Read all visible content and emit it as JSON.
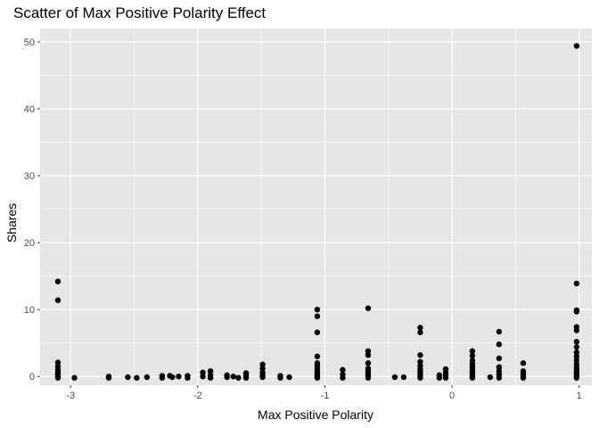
{
  "chart_data": {
    "type": "scatter",
    "title": "Scatter of Max Positive Polarity Effect",
    "xlabel": "Max Positive Polarity",
    "ylabel": "Shares",
    "xlim": [
      -3.24,
      1.1
    ],
    "ylim": [
      -1.3,
      52.0
    ],
    "x_ticks": [
      -3,
      -2,
      -1,
      0,
      1
    ],
    "y_ticks": [
      0,
      10,
      20,
      30,
      40,
      50
    ],
    "grid": true,
    "background": "#e5e5e5",
    "grid_color": "#ffffff",
    "point_color": "#000000",
    "points": [
      [
        -3.1,
        14.2
      ],
      [
        -3.1,
        11.4
      ],
      [
        -3.1,
        2.1
      ],
      [
        -3.1,
        1.5
      ],
      [
        -3.1,
        1.0
      ],
      [
        -3.1,
        0.6
      ],
      [
        -3.1,
        0.3
      ],
      [
        -3.1,
        0.0
      ],
      [
        -3.1,
        -0.2
      ],
      [
        -2.97,
        -0.2
      ],
      [
        -2.7,
        0.0
      ],
      [
        -2.7,
        -0.2
      ],
      [
        -2.55,
        -0.1
      ],
      [
        -2.48,
        -0.2
      ],
      [
        -2.4,
        -0.1
      ],
      [
        -2.28,
        0.1
      ],
      [
        -2.28,
        -0.2
      ],
      [
        -2.22,
        0.1
      ],
      [
        -2.2,
        -0.1
      ],
      [
        -2.15,
        0.0
      ],
      [
        -2.08,
        0.1
      ],
      [
        -2.08,
        -0.2
      ],
      [
        -1.96,
        0.6
      ],
      [
        -1.96,
        0.0
      ],
      [
        -1.9,
        0.8
      ],
      [
        -1.9,
        0.2
      ],
      [
        -1.9,
        -0.2
      ],
      [
        -1.77,
        0.2
      ],
      [
        -1.77,
        -0.1
      ],
      [
        -1.72,
        0.0
      ],
      [
        -1.68,
        -0.2
      ],
      [
        -1.62,
        0.5
      ],
      [
        -1.62,
        0.1
      ],
      [
        -1.62,
        -0.2
      ],
      [
        -1.49,
        1.8
      ],
      [
        -1.49,
        1.2
      ],
      [
        -1.49,
        0.6
      ],
      [
        -1.49,
        0.2
      ],
      [
        -1.49,
        -0.1
      ],
      [
        -1.35,
        0.1
      ],
      [
        -1.35,
        -0.2
      ],
      [
        -1.28,
        -0.1
      ],
      [
        -1.06,
        10.0
      ],
      [
        -1.06,
        9.0
      ],
      [
        -1.06,
        6.6
      ],
      [
        -1.06,
        3.0
      ],
      [
        -1.06,
        2.0
      ],
      [
        -1.06,
        1.6
      ],
      [
        -1.06,
        1.2
      ],
      [
        -1.06,
        0.8
      ],
      [
        -1.06,
        0.5
      ],
      [
        -1.06,
        0.2
      ],
      [
        -1.06,
        0.0
      ],
      [
        -1.06,
        -0.2
      ],
      [
        -0.86,
        1.0
      ],
      [
        -0.86,
        0.3
      ],
      [
        -0.86,
        -0.2
      ],
      [
        -0.66,
        10.2
      ],
      [
        -0.66,
        3.8
      ],
      [
        -0.66,
        3.2
      ],
      [
        -0.66,
        2.0
      ],
      [
        -0.66,
        1.2
      ],
      [
        -0.66,
        0.8
      ],
      [
        -0.66,
        0.4
      ],
      [
        -0.66,
        0.1
      ],
      [
        -0.66,
        -0.2
      ],
      [
        -0.45,
        -0.1
      ],
      [
        -0.38,
        -0.1
      ],
      [
        -0.25,
        7.3
      ],
      [
        -0.25,
        6.6
      ],
      [
        -0.25,
        3.2
      ],
      [
        -0.25,
        2.2
      ],
      [
        -0.25,
        1.6
      ],
      [
        -0.25,
        1.1
      ],
      [
        -0.25,
        0.7
      ],
      [
        -0.25,
        0.3
      ],
      [
        -0.25,
        0.0
      ],
      [
        -0.25,
        -0.2
      ],
      [
        -0.1,
        0.2
      ],
      [
        -0.1,
        -0.2
      ],
      [
        -0.05,
        1.1
      ],
      [
        -0.05,
        0.6
      ],
      [
        -0.05,
        0.2
      ],
      [
        -0.05,
        -0.2
      ],
      [
        0.16,
        3.8
      ],
      [
        0.16,
        3.1
      ],
      [
        0.16,
        2.4
      ],
      [
        0.16,
        1.9
      ],
      [
        0.16,
        1.5
      ],
      [
        0.16,
        1.1
      ],
      [
        0.16,
        0.7
      ],
      [
        0.16,
        0.3
      ],
      [
        0.16,
        0.0
      ],
      [
        0.16,
        -0.2
      ],
      [
        0.3,
        -0.1
      ],
      [
        0.37,
        6.7
      ],
      [
        0.37,
        4.8
      ],
      [
        0.37,
        2.7
      ],
      [
        0.37,
        1.4
      ],
      [
        0.37,
        0.8
      ],
      [
        0.37,
        0.3
      ],
      [
        0.37,
        -0.2
      ],
      [
        0.56,
        2.0
      ],
      [
        0.56,
        0.8
      ],
      [
        0.56,
        0.4
      ],
      [
        0.56,
        0.0
      ],
      [
        0.56,
        -0.2
      ],
      [
        0.98,
        49.4
      ],
      [
        0.98,
        13.9
      ],
      [
        0.98,
        9.9
      ],
      [
        0.98,
        9.7
      ],
      [
        0.98,
        7.4
      ],
      [
        0.98,
        6.9
      ],
      [
        0.98,
        5.2
      ],
      [
        0.98,
        4.4
      ],
      [
        0.98,
        3.6
      ],
      [
        0.98,
        3.0
      ],
      [
        0.98,
        2.4
      ],
      [
        0.98,
        1.8
      ],
      [
        0.98,
        1.3
      ],
      [
        0.98,
        0.9
      ],
      [
        0.98,
        0.5
      ],
      [
        0.98,
        0.2
      ],
      [
        0.98,
        0.0
      ],
      [
        0.98,
        -0.2
      ]
    ]
  }
}
